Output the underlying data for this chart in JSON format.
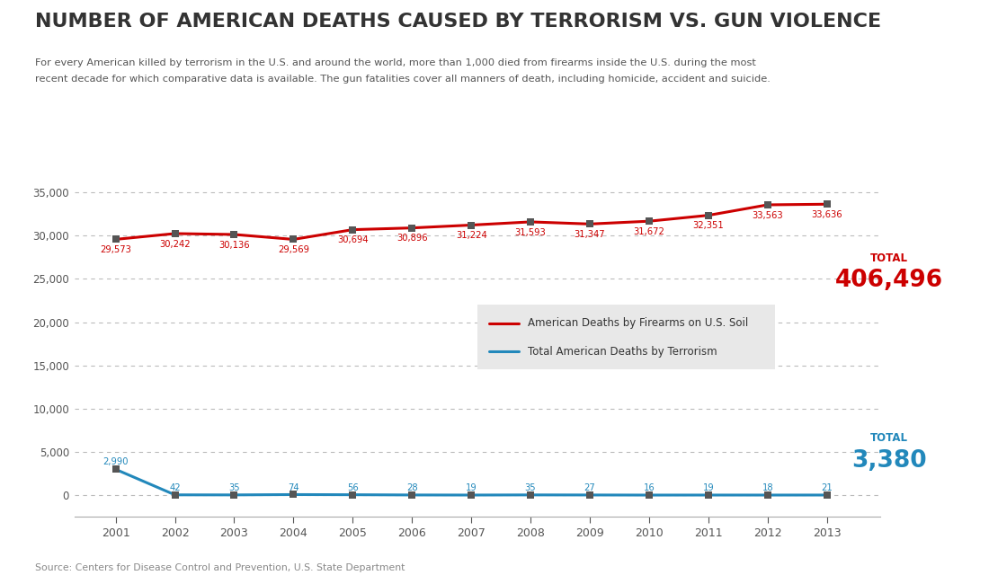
{
  "years": [
    2001,
    2002,
    2003,
    2004,
    2005,
    2006,
    2007,
    2008,
    2009,
    2010,
    2011,
    2012,
    2013
  ],
  "gun_deaths": [
    29573,
    30242,
    30136,
    29569,
    30694,
    30896,
    31224,
    31593,
    31347,
    31672,
    32351,
    33563,
    33636
  ],
  "terrorism_deaths": [
    2990,
    42,
    35,
    74,
    56,
    28,
    19,
    35,
    27,
    16,
    19,
    18,
    21
  ],
  "gun_total": "406,496",
  "terror_total": "3,380",
  "title": "NUMBER OF AMERICAN DEATHS CAUSED BY TERRORISM VS. GUN VIOLENCE",
  "subtitle_line1": "For every American killed by terrorism in the U.S. and around the world, more than 1,000 died from firearms inside the U.S. during the most",
  "subtitle_line2": "recent decade for which comparative data is available. The gun fatalities cover all manners of death, including homicide, accident and suicide.",
  "source": "Source: Centers for Disease Control and Prevention, U.S. State Department",
  "legend_gun": "American Deaths by Firearms on U.S. Soil",
  "legend_terror": "Total American Deaths by Terrorism",
  "gun_color": "#cc0000",
  "terror_color": "#2288bb",
  "bg_color": "#ffffff",
  "grid_color": "#bbbbbb",
  "title_color": "#333333",
  "subtitle_color": "#555555",
  "source_color": "#888888",
  "tick_color": "#555555",
  "marker_color": "#555555",
  "legend_bg": "#e8e8e8",
  "legend_text_color": "#333333",
  "ylim_low": -2500,
  "ylim_high": 38000,
  "yticks": [
    0,
    5000,
    10000,
    15000,
    20000,
    25000,
    30000,
    35000
  ]
}
